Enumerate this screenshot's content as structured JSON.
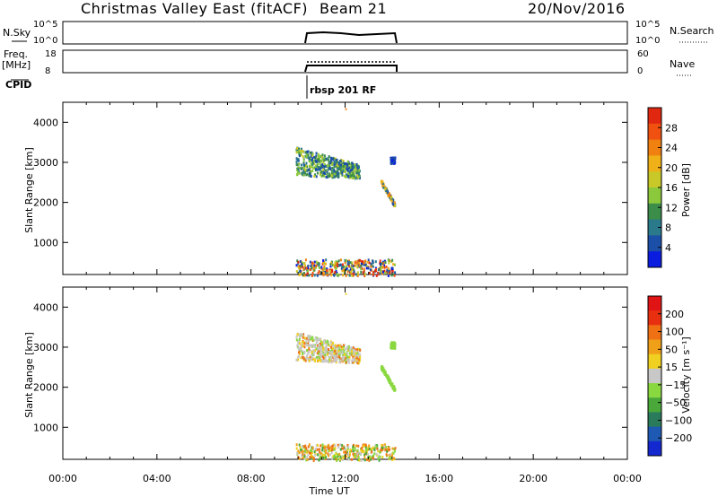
{
  "header": {
    "title": "Christmas Valley East (fitACF)",
    "beam": "Beam 21",
    "date": "20/Nov/2016"
  },
  "top_panels": {
    "nsky_label": "N.Sky",
    "nsky_ticks": [
      "10^5",
      "10^0"
    ],
    "nsearch_label": "N.Search",
    "nsearch_ticks": [
      "10^5",
      "10^0"
    ],
    "freq_label": "Freq.",
    "freq_unit": "[MHz]",
    "freq_ticks": [
      "18",
      "8"
    ],
    "nave_label": "Nave",
    "nave_ticks": [
      "60",
      "0"
    ],
    "cpid_label": "CPID",
    "cpid_value": "rbsp 201 RF"
  },
  "colors": {
    "power": [
      "#0a1ce0",
      "#1c4fa8",
      "#2a7a8c",
      "#3c8c4a",
      "#8cc83c",
      "#c8c828",
      "#f0b018",
      "#f08010",
      "#f05010",
      "#e02810"
    ],
    "velocity": [
      "#1428d0",
      "#1e5ab4",
      "#2a7a5c",
      "#4aa83a",
      "#8ad840",
      "#c8c8c8",
      "#f0d020",
      "#f0a018",
      "#f07014",
      "#e83010",
      "#e01414"
    ]
  },
  "chart_data": [
    {
      "type": "heatmap",
      "name": "power",
      "ylabel": "Slant Range [km]",
      "yticks": [
        "4000",
        "3000",
        "2000",
        "1000"
      ],
      "ylim": [
        200,
        4500
      ],
      "colorbar_label": "Power [dB]",
      "colorbar_ticks": [
        "28",
        "24",
        "20",
        "16",
        "12",
        "8",
        "4"
      ],
      "data_extent": {
        "time_start": "09:50",
        "time_end": "14:10",
        "note_regions": [
          {
            "t": [
              9.9,
              12.6
            ],
            "range_km": [
              2450,
              3400
            ],
            "dominant": "green-blue"
          },
          {
            "t": [
              13.5,
              14.1
            ],
            "range_km": [
              1900,
              2600
            ],
            "dominant": "blue-orange"
          },
          {
            "t": [
              13.9,
              14.1
            ],
            "range_km": [
              3000,
              3150
            ],
            "dominant": "blue"
          },
          {
            "t": [
              9.9,
              14.1
            ],
            "range_km": [
              200,
              600
            ],
            "dominant": "mixed"
          }
        ]
      }
    },
    {
      "type": "heatmap",
      "name": "velocity",
      "ylabel": "Slant Range [km]",
      "yticks": [
        "4000",
        "3000",
        "2000",
        "1000"
      ],
      "ylim": [
        200,
        4500
      ],
      "colorbar_label": "Velocity [m s⁻¹]",
      "colorbar_ticks": [
        "200",
        "100",
        "50",
        "15",
        "−15",
        "−50",
        "−100",
        "−200"
      ],
      "xlabel": "Time UT",
      "xticks": [
        "00:00",
        "04:00",
        "08:00",
        "12:00",
        "16:00",
        "20:00",
        "00:00"
      ]
    }
  ]
}
